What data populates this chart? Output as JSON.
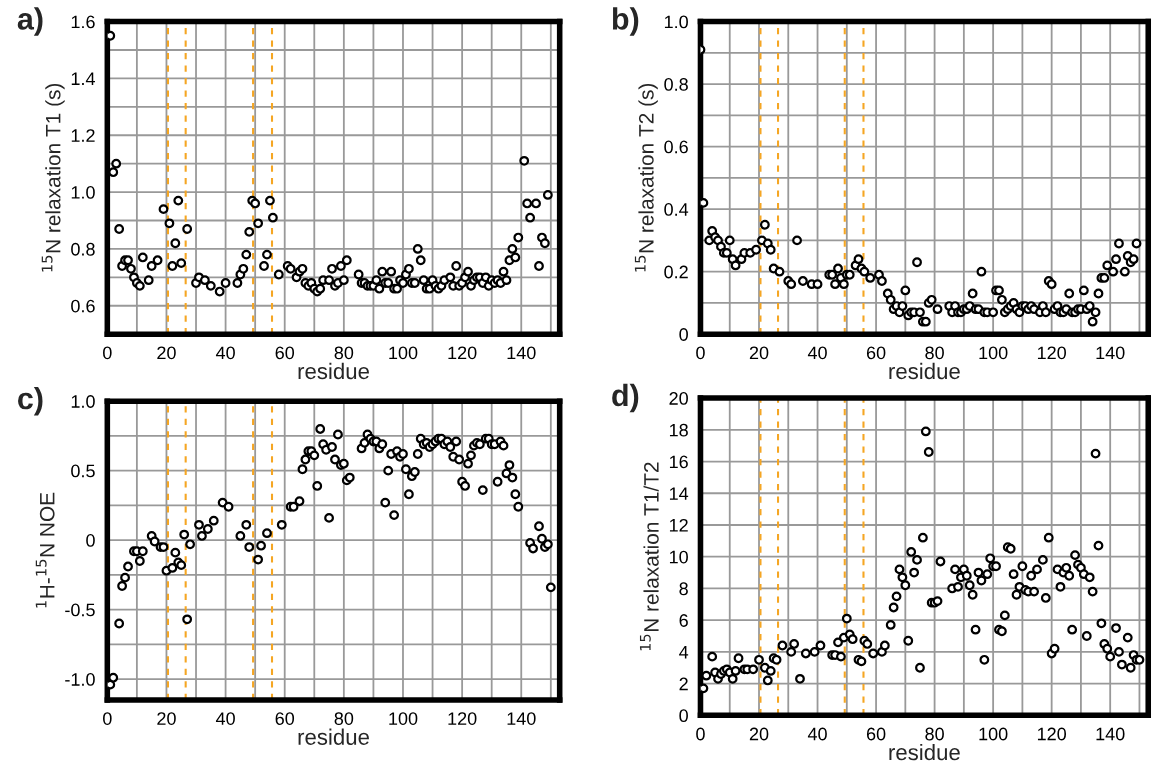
{
  "chart_data": [
    {
      "type": "scatter",
      "title": "a)",
      "xlabel": "residue",
      "ylabel": "$^{15}$N relaxation T1 (s)",
      "marker": "circle",
      "grid": true,
      "legend": false,
      "xlim": [
        0,
        153
      ],
      "xticks": [
        0,
        {
          "value": 10,
          "label": null
        },
        20,
        {
          "value": 30,
          "label": null
        },
        40,
        {
          "value": 50,
          "label": null
        },
        60,
        {
          "value": 70,
          "label": null
        },
        80,
        {
          "value": 90,
          "label": null
        },
        100,
        {
          "value": 110,
          "label": null
        },
        120,
        {
          "value": 130,
          "label": null
        },
        140,
        {
          "value": 150,
          "label": null
        }
      ],
      "ylim": [
        0.5,
        1.6
      ],
      "yticks": [
        {
          "value": 0.5,
          "label": null
        },
        0.6,
        {
          "value": 0.7,
          "label": null
        },
        0.8,
        {
          "value": 0.9,
          "label": null
        },
        {
          "value": 1.0,
          "label": "1.0"
        },
        {
          "value": 1.1,
          "label": null
        },
        1.2,
        {
          "value": 1.3,
          "label": null
        },
        1.4,
        {
          "value": 1.5,
          "label": null
        },
        1.6
      ],
      "ref_lines": [
        {
          "axis": "x",
          "value": 20.5,
          "color": "#f5a623",
          "line_style": "dashed"
        },
        {
          "axis": "x",
          "value": 26.5,
          "color": "#f5a623",
          "line_style": "dashed"
        },
        {
          "axis": "x",
          "value": 49.3,
          "color": "#f5a623",
          "line_style": "dashed"
        },
        {
          "axis": "x",
          "value": 55.7,
          "color": "#f5a623",
          "line_style": "dashed"
        }
      ],
      "series": [
        {
          "color": "#000000",
          "x": [
            1,
            2,
            3,
            4,
            5,
            6,
            7,
            8,
            9,
            10,
            11,
            12,
            14,
            15,
            17,
            19,
            21,
            22,
            23,
            24,
            25,
            27,
            30,
            31,
            33,
            35,
            38,
            40,
            44,
            45,
            46,
            47,
            48,
            49,
            50,
            51,
            53,
            54,
            55,
            56,
            58,
            61,
            62,
            64,
            65,
            66,
            67,
            68,
            69,
            70,
            71,
            72,
            73,
            75,
            76,
            77,
            78,
            79,
            80,
            81,
            85,
            86,
            87,
            88,
            89,
            90,
            91,
            92,
            93,
            94,
            95,
            96,
            97,
            98,
            99,
            100,
            101,
            102,
            103,
            104,
            105,
            106,
            107,
            108,
            109,
            110,
            111,
            112,
            113,
            114,
            116,
            117,
            118,
            119,
            120,
            121,
            122,
            123,
            124,
            125,
            126,
            127,
            128,
            129,
            130,
            131,
            132,
            133,
            134,
            135,
            136,
            137,
            138,
            139,
            141,
            142,
            143,
            145,
            146,
            147,
            148,
            149
          ],
          "values": [
            1.55,
            1.07,
            1.1,
            0.87,
            0.74,
            0.76,
            0.76,
            0.73,
            0.7,
            0.68,
            0.67,
            0.77,
            0.69,
            0.74,
            0.76,
            0.94,
            0.89,
            0.74,
            0.82,
            0.97,
            0.75,
            0.87,
            0.68,
            0.7,
            0.69,
            0.67,
            0.65,
            0.68,
            0.68,
            0.71,
            0.73,
            0.78,
            0.86,
            0.97,
            0.96,
            0.89,
            0.74,
            0.78,
            0.97,
            0.91,
            0.71,
            0.74,
            0.73,
            0.7,
            0.72,
            0.73,
            0.68,
            0.67,
            0.68,
            0.66,
            0.65,
            0.66,
            0.69,
            0.69,
            0.73,
            0.67,
            0.68,
            0.74,
            0.69,
            0.76,
            0.71,
            0.68,
            0.68,
            0.67,
            0.67,
            0.67,
            0.69,
            0.66,
            0.72,
            0.68,
            0.68,
            0.72,
            0.66,
            0.66,
            0.69,
            0.68,
            0.71,
            0.73,
            0.68,
            0.68,
            0.8,
            0.76,
            0.69,
            0.66,
            0.66,
            0.69,
            0.67,
            0.66,
            0.67,
            0.69,
            0.7,
            0.67,
            0.74,
            0.67,
            0.68,
            0.7,
            0.72,
            0.67,
            0.69,
            0.7,
            0.7,
            0.68,
            0.7,
            0.67,
            0.69,
            0.68,
            0.69,
            0.68,
            0.72,
            0.69,
            0.76,
            0.8,
            0.77,
            0.84,
            1.11,
            0.96,
            0.91,
            0.96,
            0.74,
            0.84,
            0.82,
            0.99
          ]
        }
      ]
    },
    {
      "type": "scatter",
      "title": "b)",
      "xlabel": "residue",
      "ylabel": "$^{15}$N relaxation T2 (s)",
      "marker": "circle",
      "grid": true,
      "legend": false,
      "xlim": [
        0,
        153
      ],
      "xticks": [
        0,
        {
          "value": 10,
          "label": null
        },
        20,
        {
          "value": 30,
          "label": null
        },
        40,
        {
          "value": 50,
          "label": null
        },
        60,
        {
          "value": 70,
          "label": null
        },
        80,
        {
          "value": 90,
          "label": null
        },
        100,
        {
          "value": 110,
          "label": null
        },
        120,
        {
          "value": 130,
          "label": null
        },
        140,
        {
          "value": 150,
          "label": null
        }
      ],
      "ylim": [
        0,
        1.0
      ],
      "yticks": [
        0,
        {
          "value": 0.1,
          "label": null
        },
        0.2,
        {
          "value": 0.3,
          "label": null
        },
        0.4,
        {
          "value": 0.5,
          "label": null
        },
        0.6,
        {
          "value": 0.7,
          "label": null
        },
        0.8,
        {
          "value": 0.9,
          "label": null
        },
        {
          "value": 1.0,
          "label": "1.0"
        }
      ],
      "ref_lines": [
        {
          "axis": "x",
          "value": 20.5,
          "color": "#f5a623",
          "line_style": "dashed"
        },
        {
          "axis": "x",
          "value": 26.5,
          "color": "#f5a623",
          "line_style": "dashed"
        },
        {
          "axis": "x",
          "value": 49.3,
          "color": "#f5a623",
          "line_style": "dashed"
        },
        {
          "axis": "x",
          "value": 55.7,
          "color": "#f5a623",
          "line_style": "dashed"
        }
      ],
      "series": [
        {
          "color": "#000000",
          "x": [
            0,
            1,
            3,
            4,
            5,
            6,
            7,
            8,
            9,
            10,
            11,
            12,
            14,
            15,
            17,
            19,
            21,
            22,
            23,
            24,
            25,
            27,
            30,
            31,
            33,
            35,
            38,
            40,
            44,
            45,
            46,
            47,
            48,
            49,
            50,
            51,
            53,
            54,
            55,
            56,
            58,
            61,
            62,
            64,
            65,
            66,
            67,
            68,
            69,
            70,
            71,
            72,
            73,
            74,
            75,
            76,
            77,
            78,
            79,
            81,
            85,
            86,
            87,
            88,
            89,
            90,
            91,
            92,
            93,
            94,
            95,
            96,
            97,
            98,
            100,
            101,
            102,
            103,
            104,
            105,
            106,
            107,
            108,
            109,
            110,
            111,
            112,
            113,
            114,
            116,
            117,
            118,
            119,
            120,
            121,
            122,
            123,
            124,
            125,
            126,
            127,
            128,
            129,
            130,
            131,
            132,
            133,
            134,
            135,
            136,
            137,
            138,
            139,
            141,
            142,
            143,
            145,
            146,
            147,
            148,
            149
          ],
          "values": [
            0.91,
            0.42,
            0.3,
            0.33,
            0.31,
            0.3,
            0.28,
            0.26,
            0.26,
            0.3,
            0.24,
            0.22,
            0.24,
            0.26,
            0.26,
            0.27,
            0.3,
            0.35,
            0.29,
            0.27,
            0.21,
            0.2,
            0.17,
            0.16,
            0.3,
            0.17,
            0.16,
            0.16,
            0.19,
            0.19,
            0.16,
            0.21,
            0.18,
            0.16,
            0.19,
            0.19,
            0.22,
            0.24,
            0.21,
            0.2,
            0.18,
            0.19,
            0.17,
            0.13,
            0.11,
            0.08,
            0.09,
            0.07,
            0.09,
            0.14,
            0.06,
            0.07,
            0.07,
            0.23,
            0.07,
            0.04,
            0.04,
            0.1,
            0.11,
            0.08,
            0.09,
            0.07,
            0.09,
            0.07,
            0.07,
            0.08,
            0.08,
            0.09,
            0.13,
            0.08,
            0.08,
            0.2,
            0.07,
            0.07,
            0.07,
            0.14,
            0.14,
            0.11,
            0.07,
            0.08,
            0.09,
            0.1,
            0.08,
            0.07,
            0.09,
            0.09,
            0.08,
            0.09,
            0.08,
            0.07,
            0.09,
            0.07,
            0.17,
            0.16,
            0.08,
            0.09,
            0.07,
            0.07,
            0.08,
            0.13,
            0.07,
            0.07,
            0.08,
            0.08,
            0.14,
            0.08,
            0.09,
            0.04,
            0.07,
            0.13,
            0.18,
            0.18,
            0.22,
            0.2,
            0.24,
            0.29,
            0.2,
            0.25,
            0.23,
            0.24,
            0.29
          ]
        }
      ]
    },
    {
      "type": "scatter",
      "title": "c)",
      "xlabel": "residue",
      "ylabel": "$^{1}$H-$^{15}$N NOE",
      "marker": "circle",
      "grid": true,
      "legend": false,
      "xlim": [
        0,
        153
      ],
      "xticks": [
        0,
        {
          "value": 10,
          "label": null
        },
        20,
        {
          "value": 30,
          "label": null
        },
        40,
        {
          "value": 50,
          "label": null
        },
        60,
        {
          "value": 70,
          "label": null
        },
        80,
        {
          "value": 90,
          "label": null
        },
        100,
        {
          "value": 110,
          "label": null
        },
        120,
        {
          "value": 130,
          "label": null
        },
        140,
        {
          "value": 150,
          "label": null
        }
      ],
      "ylim": [
        -1.15,
        1.0
      ],
      "yticks": [
        {
          "value": -1.0,
          "label": "-1.0"
        },
        {
          "value": -0.75,
          "label": null
        },
        {
          "value": -0.5,
          "label": "-0.5"
        },
        {
          "value": -0.25,
          "label": null
        },
        0,
        {
          "value": 0.25,
          "label": null
        },
        0.5,
        {
          "value": 0.75,
          "label": null
        },
        {
          "value": 1.0,
          "label": "1.0"
        }
      ],
      "ref_lines": [
        {
          "axis": "x",
          "value": 20.5,
          "color": "#f5a623",
          "line_style": "dashed"
        },
        {
          "axis": "x",
          "value": 26.5,
          "color": "#f5a623",
          "line_style": "dashed"
        },
        {
          "axis": "x",
          "value": 49.3,
          "color": "#f5a623",
          "line_style": "dashed"
        },
        {
          "axis": "x",
          "value": 55.7,
          "color": "#f5a623",
          "line_style": "dashed"
        }
      ],
      "series": [
        {
          "color": "#000000",
          "x": [
            1,
            2,
            4,
            5,
            6,
            7,
            9,
            10,
            11,
            12,
            15,
            16,
            18,
            19,
            20,
            22,
            23,
            24,
            25,
            26,
            27,
            28,
            31,
            32,
            34,
            36,
            39,
            41,
            45,
            47,
            48,
            51,
            52,
            54,
            59,
            62,
            63,
            65,
            66,
            67,
            68,
            69,
            70,
            71,
            72,
            73,
            74,
            75,
            76,
            77,
            78,
            79,
            80,
            81,
            82,
            86,
            87,
            88,
            89,
            90,
            91,
            92,
            93,
            94,
            95,
            96,
            97,
            98,
            99,
            100,
            101,
            102,
            103,
            104,
            105,
            106,
            107,
            108,
            109,
            110,
            111,
            112,
            113,
            114,
            115,
            116,
            117,
            118,
            119,
            120,
            121,
            122,
            123,
            124,
            125,
            126,
            127,
            128,
            129,
            130,
            131,
            132,
            133,
            134,
            135,
            136,
            137,
            138,
            139,
            143,
            144,
            146,
            147,
            148,
            149,
            150
          ],
          "values": [
            -1.04,
            -0.99,
            -0.6,
            -0.33,
            -0.27,
            -0.19,
            -0.08,
            -0.08,
            -0.15,
            -0.08,
            0.03,
            -0.01,
            -0.05,
            -0.05,
            -0.22,
            -0.2,
            -0.09,
            -0.16,
            -0.18,
            0.04,
            -0.57,
            -0.03,
            0.11,
            0.03,
            0.08,
            0.14,
            0.27,
            0.24,
            0.03,
            0.11,
            -0.05,
            -0.14,
            -0.04,
            0.05,
            0.11,
            0.24,
            0.24,
            0.28,
            0.51,
            0.58,
            0.64,
            0.64,
            0.61,
            0.39,
            0.8,
            0.69,
            0.65,
            0.16,
            0.67,
            0.58,
            0.76,
            0.54,
            0.55,
            0.43,
            0.45,
            0.66,
            0.7,
            0.76,
            0.73,
            0.71,
            0.71,
            0.66,
            0.69,
            0.27,
            0.5,
            0.62,
            0.18,
            0.64,
            0.6,
            0.62,
            0.51,
            0.33,
            0.46,
            0.49,
            0.62,
            0.73,
            0.69,
            0.7,
            0.67,
            0.69,
            0.71,
            0.73,
            0.73,
            0.69,
            0.71,
            0.67,
            0.6,
            0.71,
            0.58,
            0.42,
            0.39,
            0.55,
            0.61,
            0.68,
            0.7,
            0.69,
            0.36,
            0.73,
            0.73,
            0.69,
            0.69,
            0.42,
            0.71,
            0.68,
            0.48,
            0.54,
            0.45,
            0.33,
            0.24,
            -0.02,
            -0.06,
            0.1,
            0.01,
            -0.05,
            -0.03,
            -0.34
          ]
        }
      ]
    },
    {
      "type": "scatter",
      "title": "d)",
      "xlabel": "residue",
      "ylabel": "$^{15}$N relaxation T1/T2",
      "marker": "circle",
      "grid": true,
      "legend": false,
      "xlim": [
        0,
        153
      ],
      "xticks": [
        0,
        {
          "value": 10,
          "label": null
        },
        20,
        {
          "value": 30,
          "label": null
        },
        40,
        {
          "value": 50,
          "label": null
        },
        60,
        {
          "value": 70,
          "label": null
        },
        80,
        {
          "value": 90,
          "label": null
        },
        100,
        {
          "value": 110,
          "label": null
        },
        120,
        {
          "value": 130,
          "label": null
        },
        140,
        {
          "value": 150,
          "label": null
        }
      ],
      "ylim": [
        0,
        20
      ],
      "yticks": [
        0,
        2,
        4,
        6,
        8,
        10,
        12,
        14,
        16,
        18,
        20
      ],
      "ref_lines": [
        {
          "axis": "x",
          "value": 20.5,
          "color": "#f5a623",
          "line_style": "dashed"
        },
        {
          "axis": "x",
          "value": 26.5,
          "color": "#f5a623",
          "line_style": "dashed"
        },
        {
          "axis": "x",
          "value": 49.3,
          "color": "#f5a623",
          "line_style": "dashed"
        },
        {
          "axis": "x",
          "value": 55.7,
          "color": "#f5a623",
          "line_style": "dashed"
        }
      ],
      "series": [
        {
          "color": "#000000",
          "x": [
            1,
            2,
            4,
            5,
            6,
            7,
            8,
            9,
            10,
            11,
            12,
            13,
            15,
            16,
            18,
            20,
            22,
            23,
            24,
            25,
            26,
            28,
            31,
            32,
            34,
            36,
            39,
            41,
            45,
            46,
            47,
            48,
            49,
            50,
            51,
            52,
            54,
            55,
            56,
            57,
            59,
            62,
            63,
            65,
            66,
            67,
            68,
            69,
            70,
            71,
            72,
            73,
            74,
            75,
            76,
            77,
            78,
            79,
            80,
            81,
            82,
            86,
            87,
            88,
            89,
            90,
            91,
            92,
            93,
            94,
            95,
            96,
            97,
            98,
            99,
            100,
            101,
            102,
            103,
            104,
            105,
            106,
            107,
            108,
            109,
            110,
            111,
            112,
            113,
            114,
            115,
            117,
            118,
            119,
            120,
            121,
            122,
            123,
            124,
            125,
            126,
            127,
            128,
            129,
            130,
            131,
            132,
            133,
            134,
            135,
            136,
            137,
            138,
            139,
            140,
            142,
            143,
            144,
            146,
            147,
            148,
            149,
            150
          ],
          "values": [
            1.7,
            2.5,
            3.7,
            2.7,
            2.3,
            2.6,
            2.8,
            2.9,
            2.7,
            2.3,
            2.8,
            3.6,
            2.9,
            2.9,
            2.9,
            3.5,
            3.0,
            2.2,
            2.8,
            3.6,
            3.5,
            4.4,
            4.0,
            4.5,
            2.3,
            3.9,
            4.0,
            4.4,
            3.8,
            3.8,
            4.6,
            3.7,
            4.9,
            6.1,
            5.1,
            4.8,
            3.5,
            3.4,
            4.7,
            4.5,
            3.9,
            4.0,
            4.4,
            5.7,
            6.8,
            7.5,
            9.2,
            8.7,
            8.2,
            4.7,
            10.3,
            9.0,
            9.8,
            3.0,
            11.2,
            17.9,
            16.6,
            7.1,
            7.1,
            7.2,
            9.7,
            8.0,
            9.2,
            8.1,
            8.7,
            9.2,
            8.8,
            8.2,
            7.6,
            5.4,
            9.0,
            8.5,
            3.5,
            8.9,
            9.9,
            9.4,
            9.4,
            5.4,
            5.3,
            6.3,
            10.6,
            10.5,
            8.9,
            7.6,
            8.1,
            9.4,
            7.9,
            7.8,
            8.8,
            7.8,
            9.2,
            9.8,
            7.4,
            11.2,
            3.9,
            4.2,
            9.2,
            8.1,
            9.0,
            9.3,
            8.8,
            5.4,
            10.1,
            9.5,
            9.3,
            8.9,
            5.0,
            8.7,
            7.8,
            16.5,
            10.7,
            5.8,
            4.5,
            4.2,
            3.7,
            5.5,
            4.0,
            3.2,
            4.9,
            3.0,
            3.8,
            3.5,
            3.5
          ]
        }
      ]
    }
  ]
}
